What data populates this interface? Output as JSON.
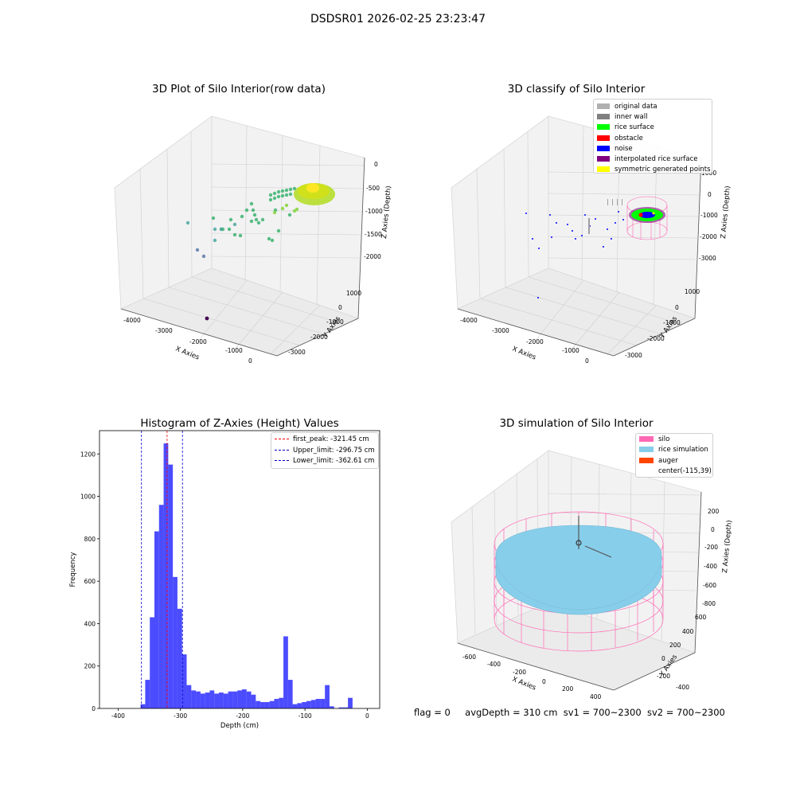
{
  "suptitle": "DSDSR01 2026-02-25 23:23:47",
  "status": {
    "flag": "flag = 0",
    "avg_depth": "avgDepth = 310 cm",
    "sv1": "sv1 = 700~2300",
    "sv2": "sv2 = 700~2300"
  },
  "chart_data": [
    {
      "type": "scatter",
      "title": "3D Plot of Silo Interior(row data)",
      "xlabel": "X Axies",
      "ylabel": "Y Axies",
      "zlabel": "Z Axies (Depth)",
      "x_ticks": [
        "-4000",
        "-3000",
        "-2000",
        "-1000",
        "0"
      ],
      "y_ticks": [
        "-3000",
        "-2000",
        "-1000",
        "0",
        "1000"
      ],
      "z_ticks": [
        "-2000",
        "-1500",
        "-1000",
        "-500",
        "0"
      ],
      "colormap": "viridis by depth",
      "grid": true
    },
    {
      "type": "scatter",
      "title": "3D classify of Silo Interior",
      "xlabel": "X Axies",
      "ylabel": "Y Axies",
      "zlabel": "Z Axies (Depth)",
      "x_ticks": [
        "-4000",
        "-3000",
        "-2000",
        "-1000",
        "0"
      ],
      "y_ticks": [
        "-3000",
        "-2000",
        "-1000",
        "0",
        "1000"
      ],
      "z_ticks": [
        "-3000",
        "-2000",
        "-1000",
        "0",
        "1000"
      ],
      "legend_position": "top-right",
      "legend": [
        {
          "label": "original data",
          "color": "#b0b0b0"
        },
        {
          "label": "inner wall",
          "color": "#808080"
        },
        {
          "label": "rice surface",
          "color": "#00ff00"
        },
        {
          "label": "obstacle",
          "color": "#ff0000"
        },
        {
          "label": "noise",
          "color": "#0000ff"
        },
        {
          "label": "interpolated rice surface",
          "color": "#800080"
        },
        {
          "label": "symmetric generated points",
          "color": "#ffff00"
        }
      ],
      "grid": true
    },
    {
      "type": "bar",
      "title": "Histogram of Z-Axies (Height) Values",
      "xlabel": "Depth (cm)",
      "ylabel": "Frequency",
      "xlim": [
        -430,
        20
      ],
      "ylim": [
        0,
        1310
      ],
      "x_ticks": [
        -400,
        -300,
        -200,
        -100,
        0
      ],
      "y_ticks": [
        0,
        200,
        400,
        600,
        800,
        1000,
        1200
      ],
      "bin_width": 7.4,
      "bin_start": -364,
      "values": [
        20,
        135,
        430,
        835,
        960,
        1250,
        1150,
        620,
        470,
        255,
        110,
        85,
        80,
        70,
        75,
        85,
        70,
        75,
        70,
        80,
        80,
        85,
        90,
        80,
        65,
        35,
        30,
        30,
        35,
        45,
        50,
        340,
        135,
        20,
        25,
        30,
        35,
        40,
        45,
        45,
        110,
        10,
        0,
        5,
        5,
        50
      ],
      "bar_color": "#0000ff",
      "vlines": [
        {
          "label": "first_peak: -321.45 cm",
          "x": -321.45,
          "color": "#ff0000"
        },
        {
          "label": "Upper_limit: -296.75 cm",
          "x": -296.75,
          "color": "#0000cd"
        },
        {
          "label": "Lower_limit: -362.61 cm",
          "x": -362.61,
          "color": "#0000cd"
        }
      ],
      "legend_position": "top-right"
    },
    {
      "type": "scatter",
      "title": "3D simulation of Silo Interior",
      "xlabel": "X Axies",
      "ylabel": "Y Axies",
      "zlabel": "Z Axies (Depth)",
      "x_ticks": [
        "-600",
        "-400",
        "-200",
        "0",
        "200",
        "400"
      ],
      "y_ticks": [
        "-400",
        "-200",
        "0",
        "200",
        "400",
        "600"
      ],
      "z_ticks": [
        "-800",
        "-600",
        "-400",
        "-200",
        "0",
        "200"
      ],
      "legend_position": "top-right",
      "legend": [
        {
          "label": "silo",
          "color": "#ff69b4"
        },
        {
          "label": "rice simulation",
          "color": "#87ceeb"
        },
        {
          "label": "auger",
          "color": "#ff4500"
        },
        {
          "label": "center(-115,39)",
          "color": ""
        }
      ],
      "grid": true
    }
  ]
}
